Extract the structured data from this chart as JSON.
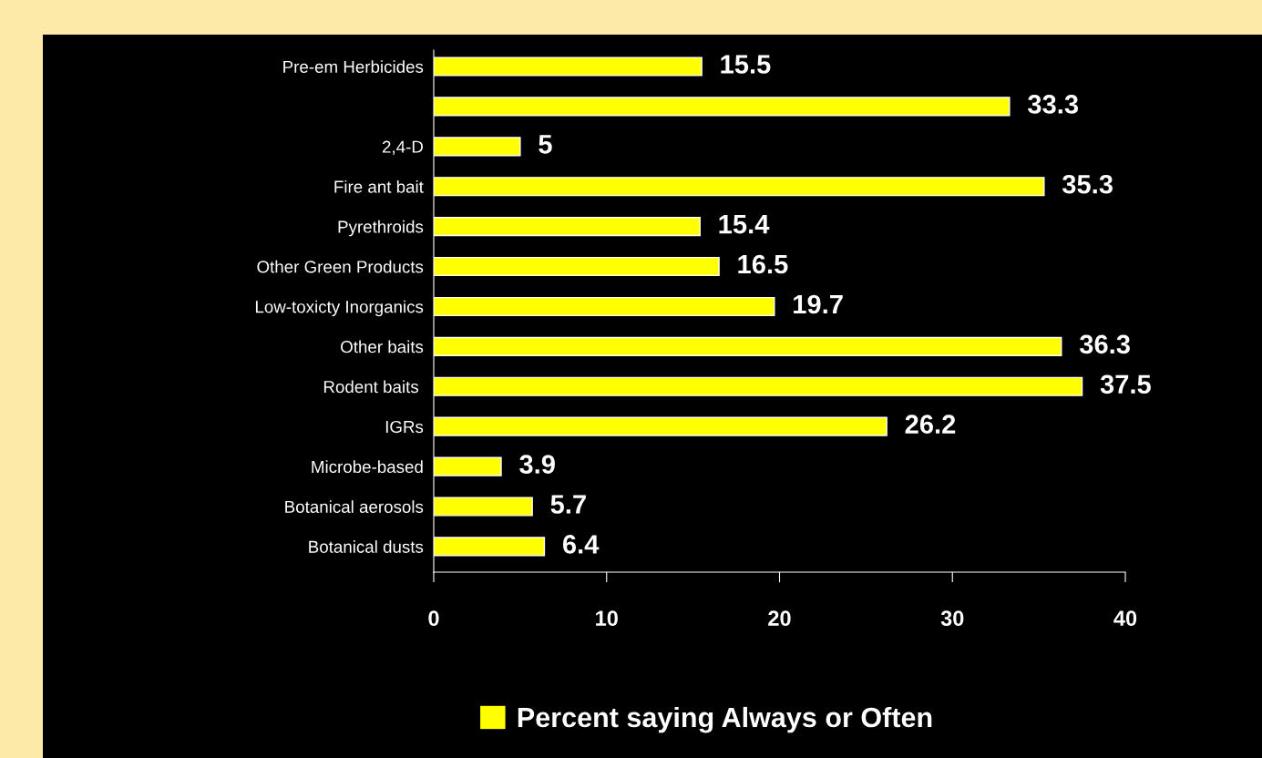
{
  "chart_data": {
    "type": "bar",
    "orientation": "horizontal",
    "categories": [
      "Pre-em Herbicides",
      null,
      "2,4-D",
      "Fire ant bait",
      "Pyrethroids",
      "Other Green Products",
      "Low-toxicty Inorganics",
      "Other baits",
      "Rodent baits ",
      "IGRs",
      "Microbe-based",
      "Botanical aerosols",
      "Botanical dusts"
    ],
    "series": [
      {
        "name": "Percent saying Always or Often",
        "color": "#ffff00",
        "values": [
          15.5,
          33.3,
          5,
          35.3,
          15.4,
          16.5,
          19.7,
          36.3,
          37.5,
          26.2,
          3.9,
          5.7,
          6.4
        ]
      }
    ],
    "data_labels": true,
    "xlim": [
      0,
      40
    ],
    "xticks": [
      0,
      10,
      20,
      30,
      40
    ],
    "grid": false,
    "legend": "bottom"
  }
}
